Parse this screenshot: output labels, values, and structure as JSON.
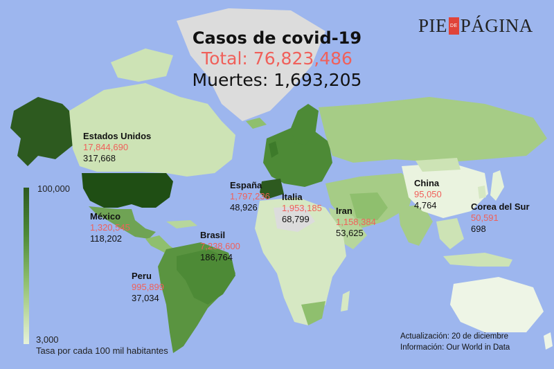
{
  "header": {
    "title": "Casos de covid-19",
    "total": "Total: 76,823,486",
    "deaths": "Muertes: 1,693,205"
  },
  "logo": {
    "left": "PIE",
    "middle": "DE",
    "right": "PÁGINA"
  },
  "countries": [
    {
      "name": "Estados Unidos",
      "cases": "17,844,690",
      "deaths": "317,668"
    },
    {
      "name": "México",
      "cases": "1,320,545",
      "deaths": "118,202"
    },
    {
      "name": "Peru",
      "cases": "995,899",
      "deaths": "37,034"
    },
    {
      "name": "Brasil",
      "cases": "7,238,600",
      "deaths": "186,764"
    },
    {
      "name": "España",
      "cases": "1,797,236",
      "deaths": "48,926"
    },
    {
      "name": "Italia",
      "cases": "1,953,185",
      "deaths": "68,799"
    },
    {
      "name": "Iran",
      "cases": "1,158,384",
      "deaths": "53,625"
    },
    {
      "name": "China",
      "cases": "95,050",
      "deaths": "4,764"
    },
    {
      "name": "Corea del Sur",
      "cases": "50,591",
      "deaths": "698"
    }
  ],
  "legend": {
    "max": "100,000",
    "min": "3,000",
    "caption": "Tasa por cada 100 mil habitantes"
  },
  "footer": {
    "update": "Actualización: 20 de diciembre",
    "source": "Información: Our World in Data"
  },
  "colors": {
    "ocean": "#9db6ee",
    "accent_cases": "#f0605a",
    "scale_high": "#2d5a1f",
    "scale_low": "#e6f2d9",
    "no_data": "#dcdcdc"
  }
}
